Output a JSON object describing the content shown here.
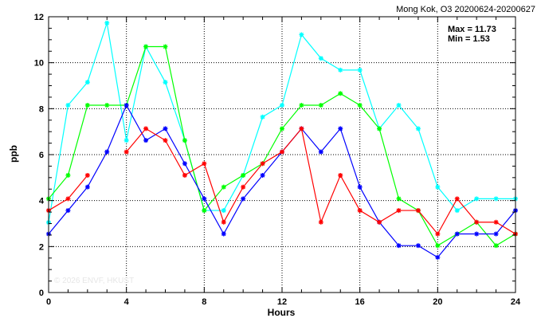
{
  "chart_data": {
    "type": "line",
    "title": "Mong Kok, O3 20200624-20200627",
    "xlabel": "Hours",
    "ylabel": "ppb",
    "xlim": [
      0,
      24
    ],
    "ylim": [
      0,
      12
    ],
    "x_ticks": [
      0,
      4,
      8,
      12,
      16,
      20,
      24
    ],
    "y_ticks": [
      0,
      2,
      4,
      6,
      8,
      10,
      12
    ],
    "grid": true,
    "stats": {
      "max_text": "Max = 11.73",
      "min_text": "Min =  1.53"
    },
    "watermark": "© 2026  ENVF, HKUST",
    "x": [
      0,
      1,
      2,
      3,
      4,
      5,
      6,
      7,
      8,
      9,
      10,
      11,
      12,
      13,
      14,
      15,
      16,
      17,
      18,
      19,
      20,
      21,
      22,
      23,
      24
    ],
    "series": [
      {
        "color": "#00ffff",
        "values": [
          3.05,
          8.15,
          9.15,
          11.73,
          6.62,
          10.7,
          9.15,
          6.62,
          3.57,
          3.57,
          5.1,
          7.64,
          8.15,
          11.22,
          10.19,
          9.68,
          9.68,
          7.13,
          8.15,
          7.13,
          4.59,
          3.57,
          4.08,
          4.08,
          4.08
        ]
      },
      {
        "color": "#00ff00",
        "values": [
          4.08,
          5.1,
          8.15,
          8.15,
          8.15,
          10.7,
          10.7,
          6.62,
          3.57,
          4.59,
          5.1,
          5.61,
          7.13,
          8.15,
          8.15,
          8.66,
          8.15,
          7.13,
          4.08,
          3.57,
          2.04,
          2.55,
          3.06,
          2.04,
          2.55
        ]
      },
      {
        "color": "#0000ff",
        "values": [
          2.55,
          3.57,
          4.59,
          6.12,
          8.15,
          6.62,
          7.13,
          5.61,
          4.08,
          2.55,
          4.08,
          5.1,
          6.12,
          7.13,
          6.12,
          7.13,
          4.59,
          3.06,
          2.04,
          2.04,
          1.53,
          2.55,
          2.55,
          2.55,
          3.57
        ]
      },
      {
        "color": "#ff0000",
        "values": [
          3.57,
          4.08,
          5.1,
          null,
          6.12,
          7.13,
          6.62,
          5.1,
          5.61,
          3.06,
          4.59,
          5.61,
          6.12,
          7.13,
          3.06,
          5.1,
          3.57,
          3.06,
          3.57,
          3.57,
          2.55,
          4.08,
          3.06,
          3.06,
          2.55
        ]
      }
    ]
  }
}
